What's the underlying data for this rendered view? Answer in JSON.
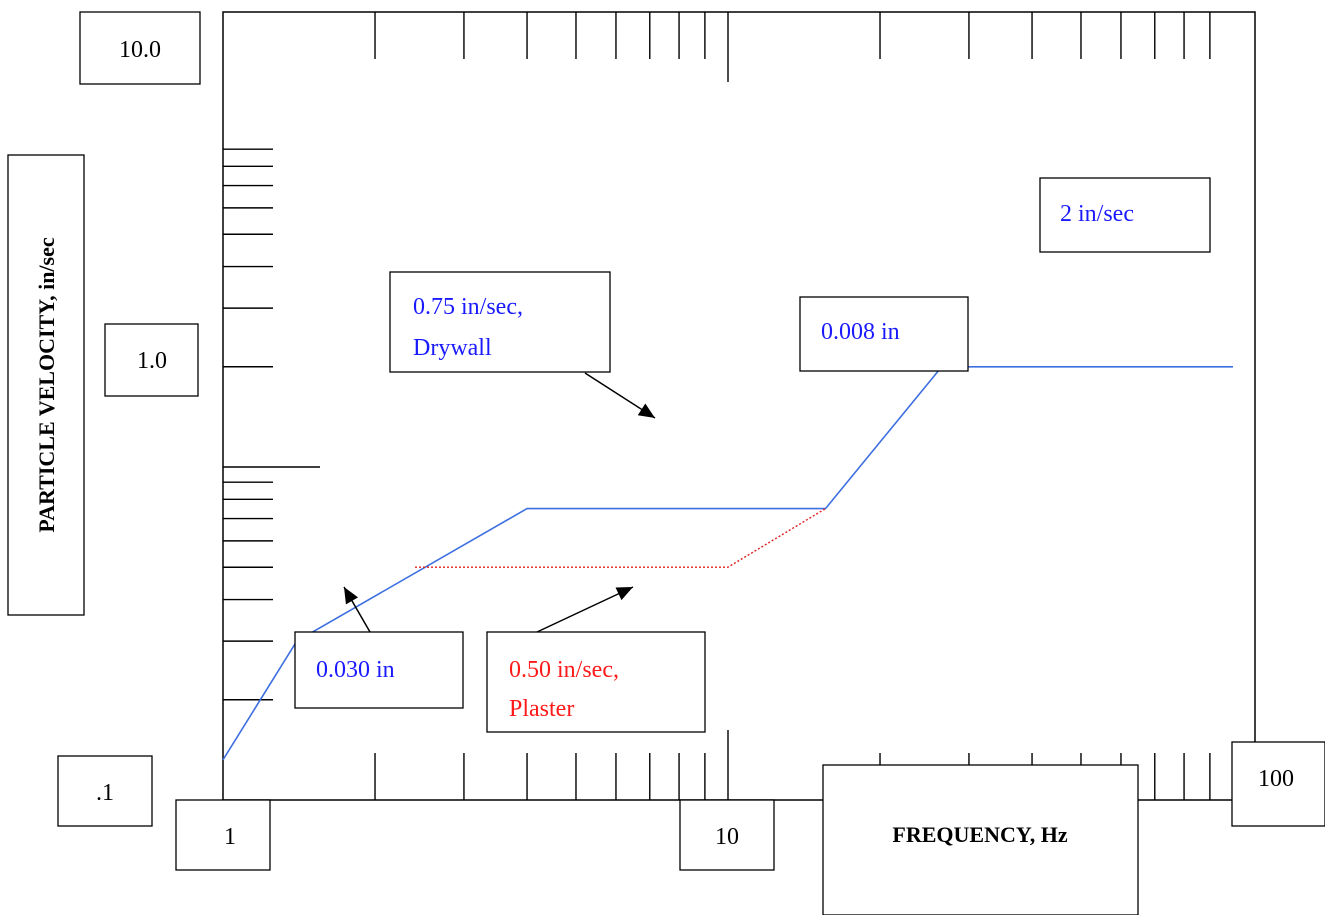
{
  "chart_data": {
    "type": "line",
    "xlabel": "FREQUENCY, Hz",
    "ylabel": "PARTICLE VELOCITY, in/sec",
    "x_scale": "log",
    "y_scale": "log",
    "xlim": [
      1,
      100
    ],
    "ylim": [
      0.1,
      10
    ],
    "grid": false,
    "x_tick_labels": [
      "1",
      "10",
      "100"
    ],
    "y_tick_labels": [
      ".1",
      "1.0",
      "10.0"
    ],
    "series": [
      {
        "name": "",
        "color": "#3d6fe0",
        "style": "solid",
        "x": [
          1.0,
          1.4,
          4.0,
          15.6,
          26.5,
          100
        ],
        "y": [
          0.132,
          0.3,
          0.75,
          0.75,
          2.0,
          2.0
        ]
      },
      {
        "name": "",
        "color": "#e02020",
        "style": "dotted",
        "x": [
          2.4,
          10.0,
          15.6
        ],
        "y": [
          0.5,
          0.5,
          0.75
        ]
      }
    ],
    "annotations": [
      {
        "id": "a1",
        "lines": [
          "0.75 in/sec,",
          "Drywall"
        ],
        "color": "#1a1aff"
      },
      {
        "id": "a2",
        "lines": [
          "0.008 in"
        ],
        "color": "#1a1aff"
      },
      {
        "id": "a3",
        "lines": [
          "2 in/sec"
        ],
        "color": "#1a1aff"
      },
      {
        "id": "a4",
        "lines": [
          "0.030 in"
        ],
        "color": "#1a1aff"
      },
      {
        "id": "a5",
        "lines": [
          "0.50 in/sec,",
          "Plaster"
        ],
        "color": "#ff1a1a"
      }
    ]
  }
}
